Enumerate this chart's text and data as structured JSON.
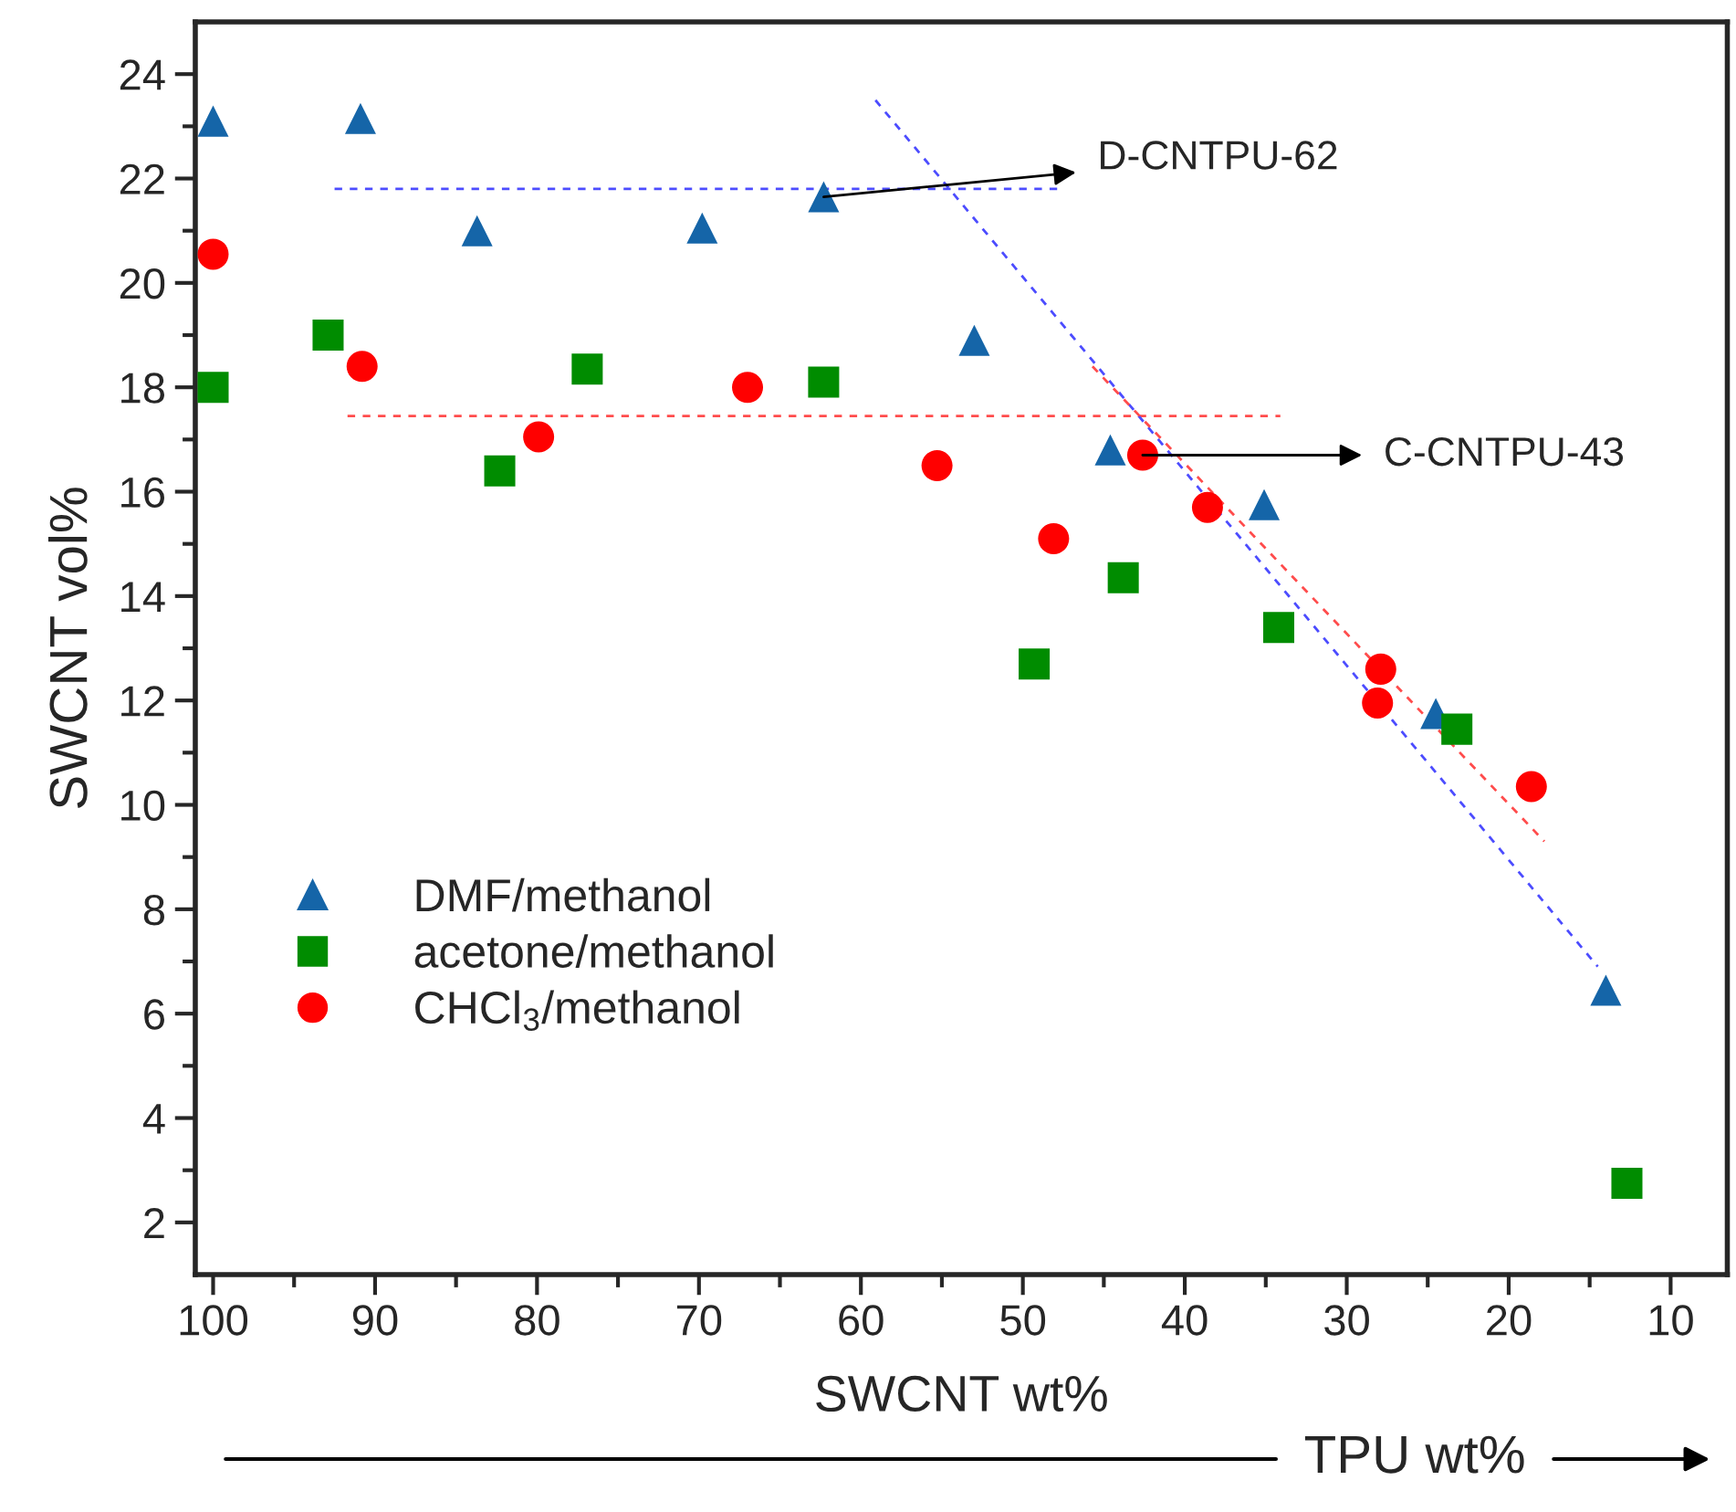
{
  "chart_data": {
    "type": "scatter",
    "xlabel": "SWCNT wt%",
    "ylabel": "SWCNT vol%",
    "xlim": [
      101.1,
      6.5
    ],
    "xticks": [
      100,
      90,
      80,
      70,
      60,
      50,
      40,
      30,
      20,
      10
    ],
    "ylim": [
      1,
      25
    ],
    "yticks": [
      2,
      4,
      6,
      8,
      10,
      12,
      14,
      16,
      18,
      20,
      22,
      24
    ],
    "grid": false,
    "legend": "bottom left",
    "series": [
      {
        "name": "DMF/methanol",
        "marker": "triangle",
        "color": "#1565a8",
        "x": [
          100,
          90.9,
          83.7,
          69.8,
          62.3,
          53.0,
          44.6,
          35.1,
          24.5,
          14.0
        ],
        "values": [
          23.1,
          23.15,
          21.0,
          21.05,
          21.65,
          18.9,
          16.8,
          15.75,
          11.75,
          6.45
        ]
      },
      {
        "name": "acetone/methanol",
        "marker": "square",
        "color": "#008c00",
        "x": [
          100,
          92.9,
          82.3,
          76.9,
          62.3,
          49.3,
          43.8,
          34.2,
          23.2,
          12.7
        ],
        "values": [
          18.0,
          19.0,
          16.4,
          18.35,
          18.1,
          12.7,
          14.35,
          13.4,
          11.45,
          2.75
        ]
      },
      {
        "name": "CHCl$_{3}$/methanol",
        "marker": "circle",
        "color": "#ff0000",
        "x": [
          100,
          90.8,
          79.9,
          67.0,
          55.3,
          48.1,
          42.6,
          38.6,
          27.9,
          28.1,
          18.6
        ],
        "values": [
          20.55,
          18.4,
          17.05,
          18.0,
          16.5,
          15.1,
          16.7,
          15.7,
          12.6,
          11.95,
          10.35
        ]
      },
      {
        "type": "line",
        "line_style": "dashed",
        "color": "#4c4cff",
        "x": [
          92.5,
          47.8
        ],
        "values": [
          21.8,
          21.8
        ]
      },
      {
        "type": "line",
        "line_style": "dashed",
        "color": "#ff4c4c",
        "x": [
          91.7,
          34.1
        ],
        "values": [
          17.45,
          17.45
        ]
      },
      {
        "type": "line",
        "line_style": "dashed",
        "color": "#4c4cff",
        "x": [
          59.1,
          14.5
        ],
        "values": [
          23.5,
          6.9
        ]
      },
      {
        "type": "line",
        "line_style": "dashed",
        "color": "#ff4c4c",
        "x": [
          45.7,
          17.8
        ],
        "values": [
          18.4,
          9.3
        ]
      }
    ],
    "annotations": [
      {
        "text": "D-CNTPU-62",
        "x": 62.3,
        "y": 21.65
      },
      {
        "text": "C-CNTPU-43",
        "x": 42.6,
        "y": 16.7
      },
      "TPU wt%"
    ]
  }
}
